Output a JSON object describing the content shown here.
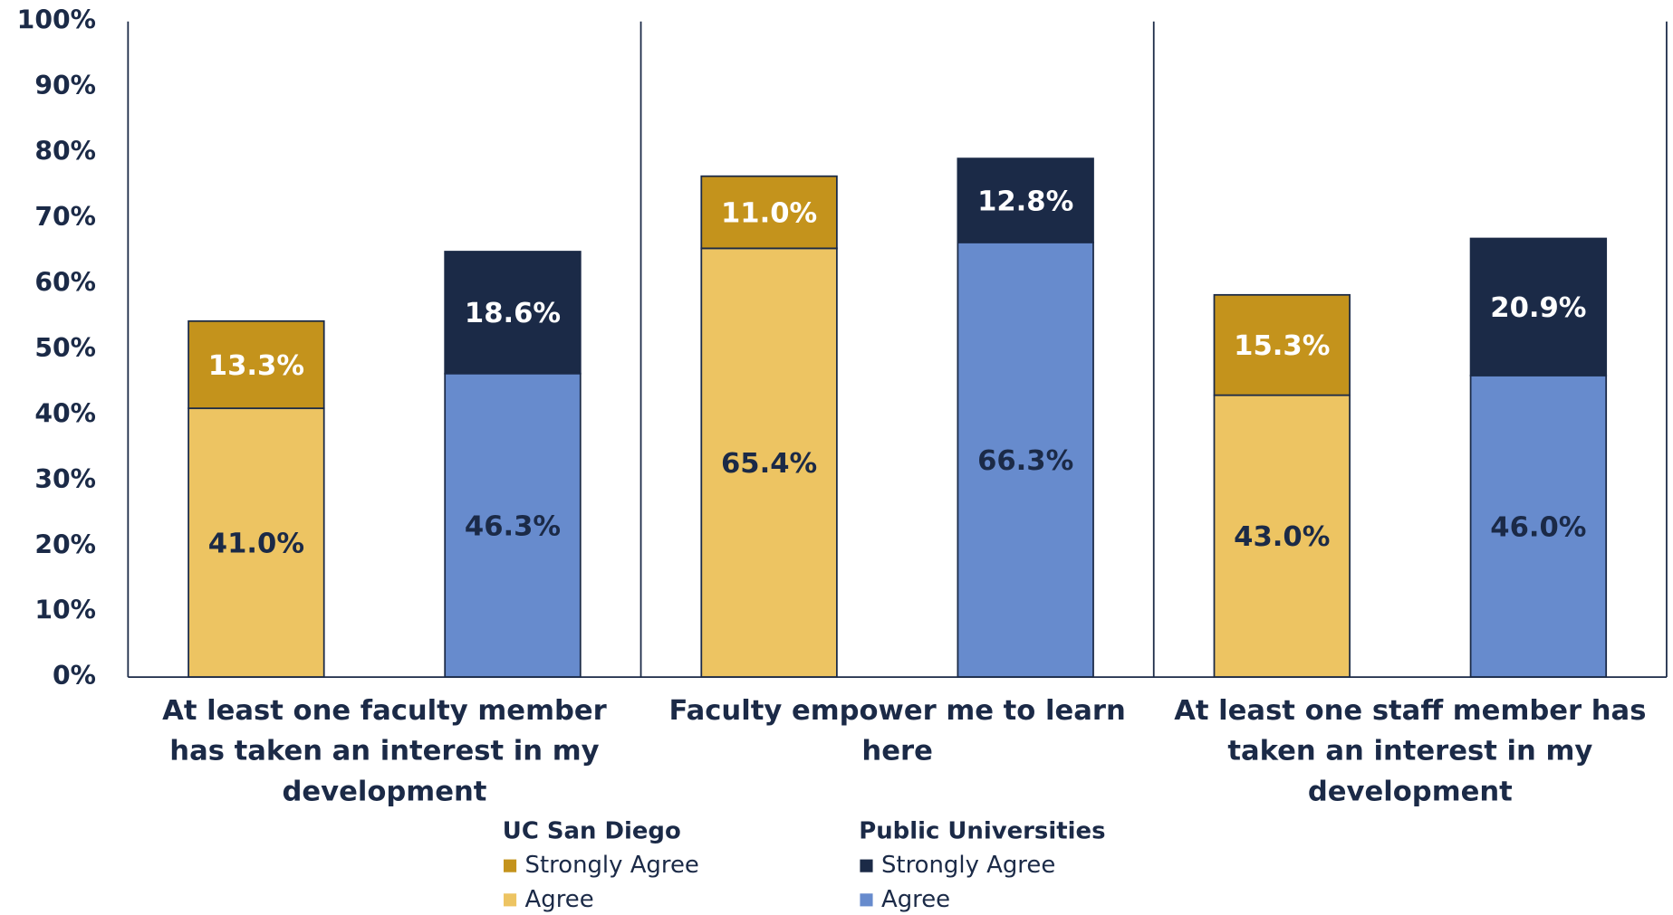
{
  "chart_data": {
    "type": "stacked_bar",
    "categories": [
      "At least one faculty member has taken an interest in my development",
      "Faculty empower me to learn here",
      "At least one staff member has taken an interest in my development"
    ],
    "series": [
      {
        "name": "Agree",
        "stack": "UC San Diego",
        "color": "#EDC462",
        "label_color": "#1B2A47",
        "values": [
          41.0,
          65.4,
          43.0
        ],
        "value_labels": [
          "41.0%",
          "65.4%",
          "43.0%"
        ]
      },
      {
        "name": "Strongly Agree",
        "stack": "UC San Diego",
        "color": "#C4931C",
        "label_color": "#ffffff",
        "values": [
          13.3,
          11.0,
          15.3
        ],
        "value_labels": [
          "13.3%",
          "11.0%",
          "15.3%"
        ]
      },
      {
        "name": "Agree",
        "stack": "Public Universities",
        "color": "#678BCD",
        "label_color": "#1B2A47",
        "values": [
          46.3,
          66.3,
          46.0
        ],
        "value_labels": [
          "46.3%",
          "66.3%",
          "46.0%"
        ]
      },
      {
        "name": "Strongly Agree",
        "stack": "Public Universities",
        "color": "#1B2A47",
        "label_color": "#ffffff",
        "values": [
          18.6,
          12.8,
          20.9
        ],
        "value_labels": [
          "18.6%",
          "12.8%",
          "20.9%"
        ]
      }
    ],
    "ylim": [
      0,
      100
    ],
    "yticks": [
      {
        "value": 0,
        "label": "0%"
      },
      {
        "value": 10,
        "label": "10%"
      },
      {
        "value": 20,
        "label": "20%"
      },
      {
        "value": 30,
        "label": "30%"
      },
      {
        "value": 40,
        "label": "40%"
      },
      {
        "value": 50,
        "label": "50%"
      },
      {
        "value": 60,
        "label": "60%"
      },
      {
        "value": 70,
        "label": "70%"
      },
      {
        "value": 80,
        "label": "80%"
      },
      {
        "value": 90,
        "label": "90%"
      },
      {
        "value": 100,
        "label": "100%"
      }
    ],
    "grid": false,
    "legend": "bottom"
  }
}
